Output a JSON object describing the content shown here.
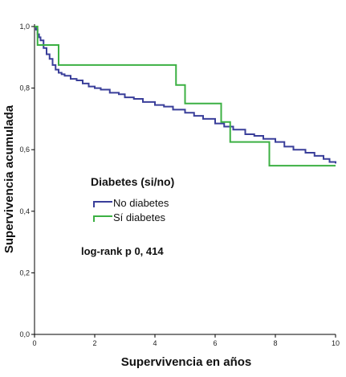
{
  "chart_data": {
    "type": "line",
    "subtype": "kaplan-meier-step",
    "xlabel": "Supervivencia en años",
    "ylabel": "Supervivencia acumulada",
    "xlim": [
      0,
      10
    ],
    "ylim": [
      0,
      1
    ],
    "x_ticks": [
      "0",
      "2",
      "4",
      "6",
      "8",
      "10"
    ],
    "y_ticks": [
      "0,0",
      "0,2",
      "0,4",
      "0,6",
      "0,8",
      "1,0"
    ],
    "grid": false,
    "legend": {
      "title": "Diabetes (si/no)",
      "placement": "center-left"
    },
    "annotation": "log-rank p 0, 414",
    "series": [
      {
        "name": "No diabetes",
        "color": "#3a3f9a",
        "points": [
          [
            0,
            1.0
          ],
          [
            0.05,
            0.99
          ],
          [
            0.1,
            0.975
          ],
          [
            0.15,
            0.965
          ],
          [
            0.2,
            0.955
          ],
          [
            0.3,
            0.93
          ],
          [
            0.4,
            0.91
          ],
          [
            0.5,
            0.895
          ],
          [
            0.6,
            0.875
          ],
          [
            0.7,
            0.86
          ],
          [
            0.8,
            0.85
          ],
          [
            0.9,
            0.845
          ],
          [
            1.0,
            0.84
          ],
          [
            1.2,
            0.83
          ],
          [
            1.4,
            0.825
          ],
          [
            1.6,
            0.815
          ],
          [
            1.8,
            0.805
          ],
          [
            2.0,
            0.8
          ],
          [
            2.2,
            0.795
          ],
          [
            2.5,
            0.785
          ],
          [
            2.8,
            0.78
          ],
          [
            3.0,
            0.77
          ],
          [
            3.3,
            0.765
          ],
          [
            3.6,
            0.755
          ],
          [
            4.0,
            0.745
          ],
          [
            4.3,
            0.74
          ],
          [
            4.6,
            0.73
          ],
          [
            5.0,
            0.72
          ],
          [
            5.3,
            0.71
          ],
          [
            5.6,
            0.7
          ],
          [
            6.0,
            0.685
          ],
          [
            6.3,
            0.675
          ],
          [
            6.6,
            0.665
          ],
          [
            7.0,
            0.65
          ],
          [
            7.3,
            0.645
          ],
          [
            7.6,
            0.635
          ],
          [
            8.0,
            0.625
          ],
          [
            8.3,
            0.61
          ],
          [
            8.6,
            0.6
          ],
          [
            9.0,
            0.59
          ],
          [
            9.3,
            0.58
          ],
          [
            9.6,
            0.57
          ],
          [
            9.8,
            0.56
          ],
          [
            10.0,
            0.555
          ]
        ]
      },
      {
        "name": "Sí diabetes",
        "color": "#3cb043",
        "points": [
          [
            0,
            1.0
          ],
          [
            0.1,
            0.94
          ],
          [
            0.8,
            0.875
          ],
          [
            4.7,
            0.81
          ],
          [
            5.0,
            0.75
          ],
          [
            6.2,
            0.69
          ],
          [
            6.5,
            0.625
          ],
          [
            7.8,
            0.548
          ],
          [
            10.0,
            0.548
          ]
        ]
      }
    ]
  }
}
